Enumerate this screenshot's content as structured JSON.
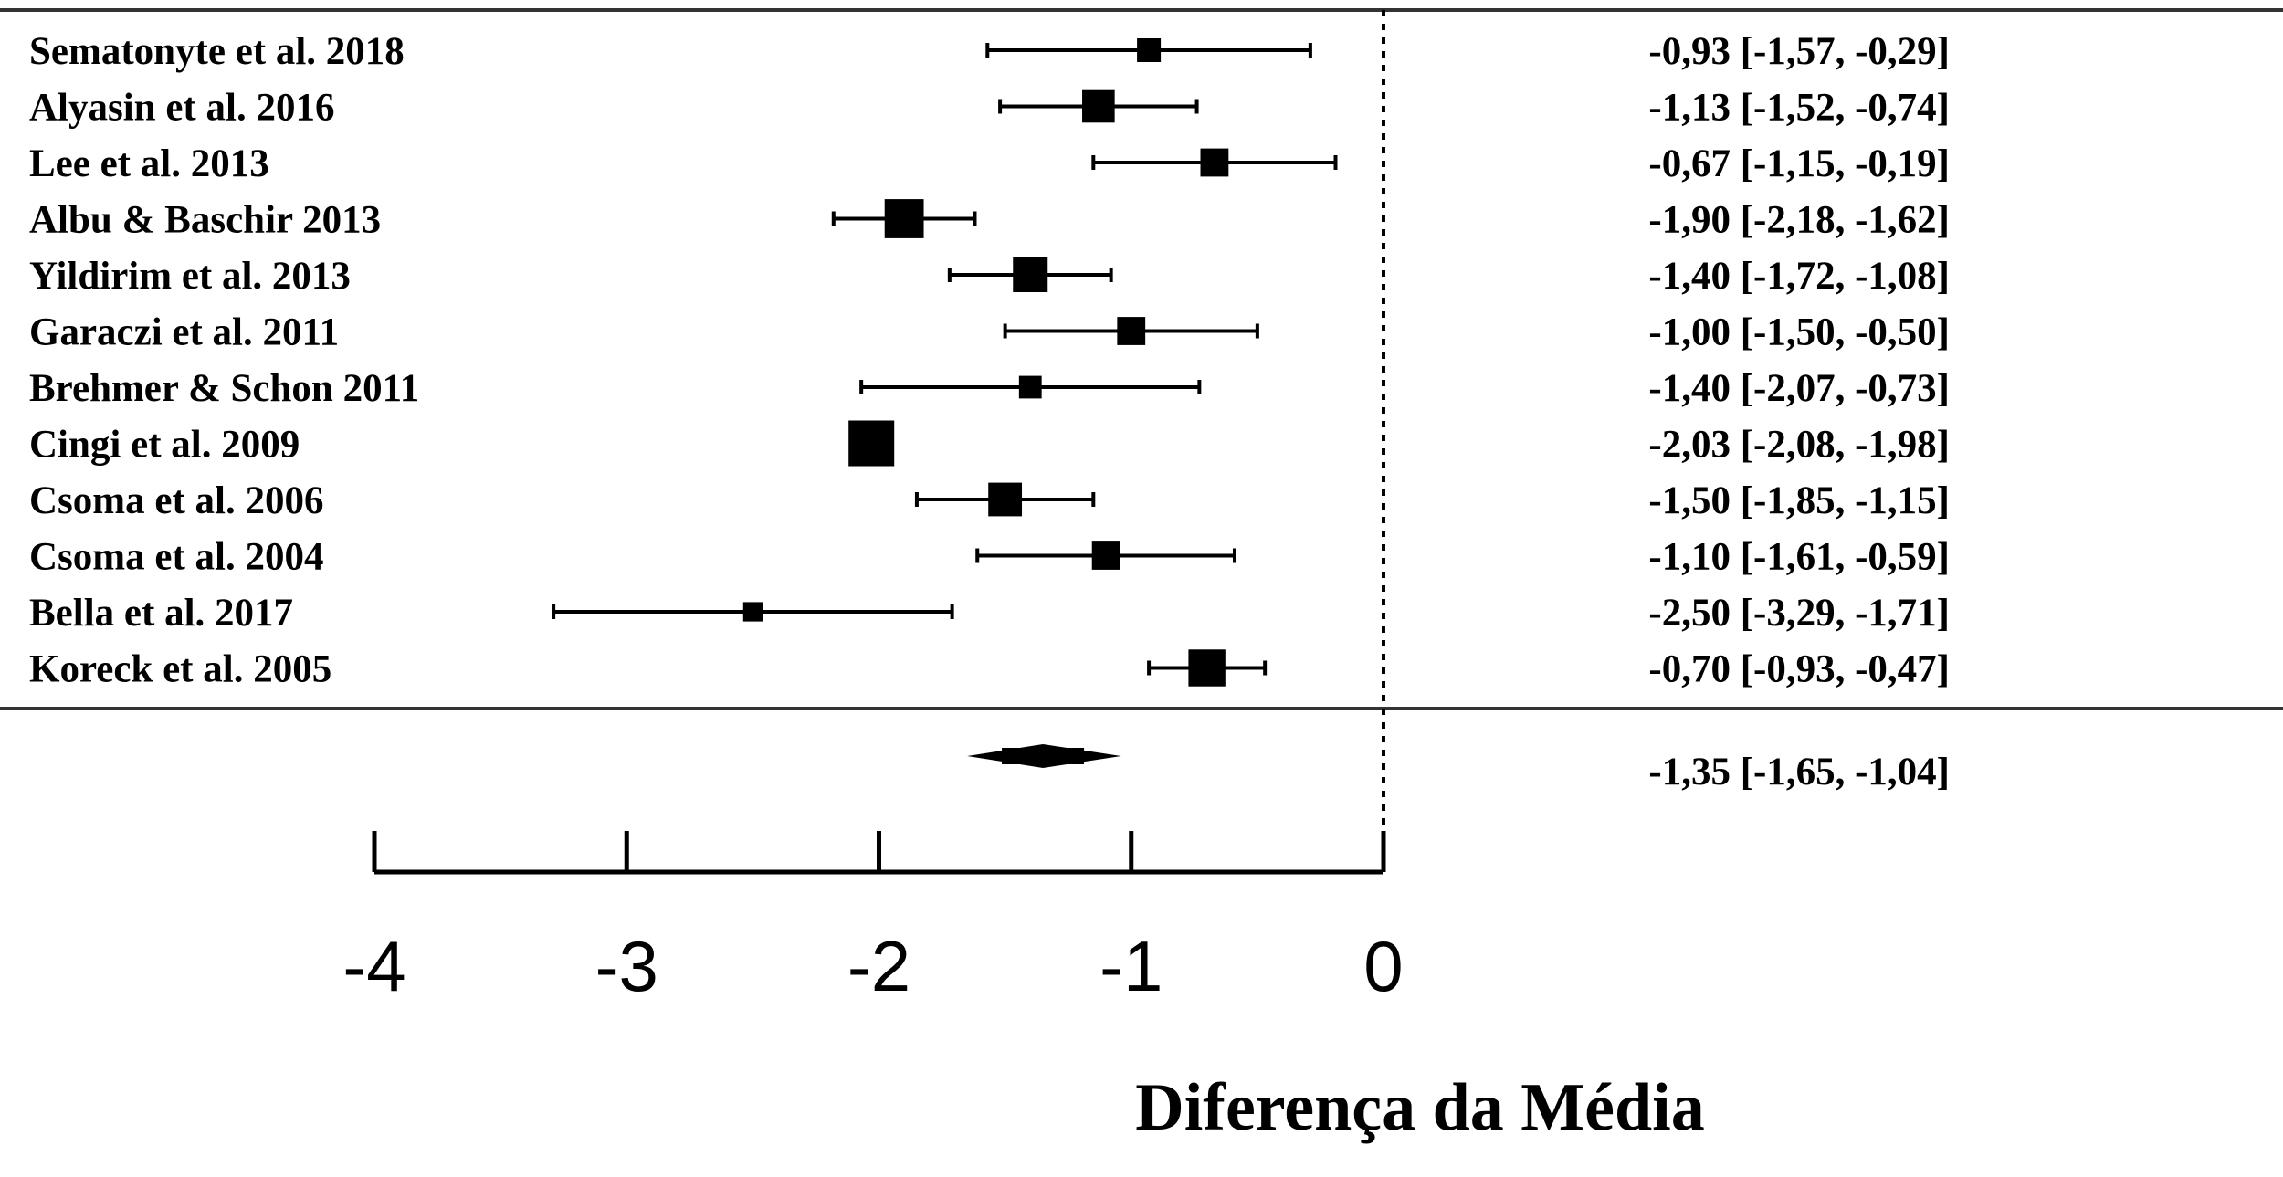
{
  "chart_data": {
    "type": "forest",
    "xlabel": "Diferença da Média",
    "xlim": [
      -4,
      0
    ],
    "xticks": [
      -4,
      -3,
      -2,
      -1,
      0
    ],
    "xtick_labels": [
      "-4",
      "-3",
      "-2",
      "-1",
      "0"
    ],
    "reference_line": 0,
    "studies": [
      {
        "label": "Sematonyte et al. 2018",
        "estimate": -0.93,
        "lower": -1.57,
        "upper": -0.29,
        "ci_text": "-0,93 [-1,57, -0,29]",
        "weight": 1.0
      },
      {
        "label": "Alyasin et al. 2016",
        "estimate": -1.13,
        "lower": -1.52,
        "upper": -0.74,
        "ci_text": "-1,13 [-1,52, -0,74]",
        "weight": 1.8
      },
      {
        "label": "Lee et al. 2013",
        "estimate": -0.67,
        "lower": -1.15,
        "upper": -0.19,
        "ci_text": "-0,67 [-1,15, -0,19]",
        "weight": 1.4
      },
      {
        "label": "Albu  & Baschir 2013",
        "estimate": -1.9,
        "lower": -2.18,
        "upper": -1.62,
        "ci_text": "-1,90 [-2,18, -1,62]",
        "weight": 2.4
      },
      {
        "label": "Yildirim  et al. 2013",
        "estimate": -1.4,
        "lower": -1.72,
        "upper": -1.08,
        "ci_text": "-1,40 [-1,72, -1,08]",
        "weight": 2.0
      },
      {
        "label": "Garaczi  et al. 2011",
        "estimate": -1.0,
        "lower": -1.5,
        "upper": -0.5,
        "ci_text": "-1,00 [-1,50, -0,50]",
        "weight": 1.4
      },
      {
        "label": "Brehmer  & Schon 2011",
        "estimate": -1.4,
        "lower": -2.07,
        "upper": -0.73,
        "ci_text": "-1,40 [-2,07, -0,73]",
        "weight": 0.9
      },
      {
        "label": "Cingi  et al. 2009",
        "estimate": -2.03,
        "lower": -2.08,
        "upper": -1.98,
        "ci_text": "-2,03 [-2,08, -1,98]",
        "weight": 3.0
      },
      {
        "label": "Csoma et al. 2006",
        "estimate": -1.5,
        "lower": -1.85,
        "upper": -1.15,
        "ci_text": "-1,50 [-1,85, -1,15]",
        "weight": 1.9
      },
      {
        "label": "Csoma et al. 2004",
        "estimate": -1.1,
        "lower": -1.61,
        "upper": -0.59,
        "ci_text": "-1,10 [-1,61, -0,59]",
        "weight": 1.4
      },
      {
        "label": "Bella et al. 2017",
        "estimate": -2.5,
        "lower": -3.29,
        "upper": -1.71,
        "ci_text": "-2,50 [-3,29, -1,71]",
        "weight": 0.6
      },
      {
        "label": "Koreck et al. 2005",
        "estimate": -0.7,
        "lower": -0.93,
        "upper": -0.47,
        "ci_text": "-0,70 [-0,93, -0,47]",
        "weight": 2.2
      }
    ],
    "summary": {
      "estimate": -1.35,
      "lower": -1.65,
      "upper": -1.04,
      "ci_text": "-1,35 [-1,65, -1,04]"
    },
    "colors": {
      "marks": "#000000",
      "background": "#ffffff"
    }
  }
}
